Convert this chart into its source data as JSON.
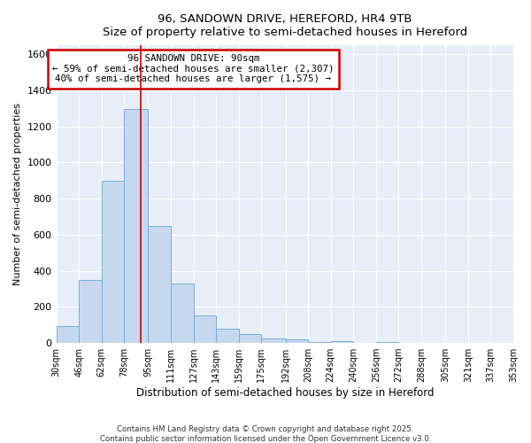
{
  "title_line1": "96, SANDOWN DRIVE, HEREFORD, HR4 9TB",
  "title_line2": "Size of property relative to semi-detached houses in Hereford",
  "xlabel": "Distribution of semi-detached houses by size in Hereford",
  "ylabel": "Number of semi-detached properties",
  "bar_color": "#c5d8f0",
  "bar_edge_color": "#7aaed6",
  "property_line_color": "#cc0000",
  "property_size": 90,
  "annotation_title": "96 SANDOWN DRIVE: 90sqm",
  "annotation_line1": "← 59% of semi-detached houses are smaller (2,307)",
  "annotation_line2": "40% of semi-detached houses are larger (1,575) →",
  "annotation_box_color": "#ffffff",
  "annotation_box_edge_color": "#cc0000",
  "footer_line1": "Contains HM Land Registry data © Crown copyright and database right 2025.",
  "footer_line2": "Contains public sector information licensed under the Open Government Licence v3.0.",
  "bin_edges": [
    30,
    46,
    62,
    78,
    95,
    111,
    127,
    143,
    159,
    175,
    192,
    208,
    224,
    240,
    256,
    272,
    288,
    305,
    321,
    337,
    353
  ],
  "bin_labels": [
    "30sqm",
    "46sqm",
    "62sqm",
    "78sqm",
    "95sqm",
    "111sqm",
    "127sqm",
    "143sqm",
    "159sqm",
    "175sqm",
    "192sqm",
    "208sqm",
    "224sqm",
    "240sqm",
    "256sqm",
    "272sqm",
    "288sqm",
    "305sqm",
    "321sqm",
    "337sqm",
    "353sqm"
  ],
  "bar_heights": [
    95,
    350,
    900,
    1295,
    650,
    330,
    155,
    80,
    50,
    25,
    20,
    5,
    10,
    0,
    5,
    0,
    0,
    0,
    0,
    0
  ],
  "ylim": [
    0,
    1650
  ],
  "yticks": [
    0,
    200,
    400,
    600,
    800,
    1000,
    1200,
    1400,
    1600
  ],
  "background_color": "#ffffff",
  "plot_bg_color": "#e8eef8",
  "grid_color": "#ffffff",
  "title_fontsize": 10,
  "subtitle_fontsize": 9
}
